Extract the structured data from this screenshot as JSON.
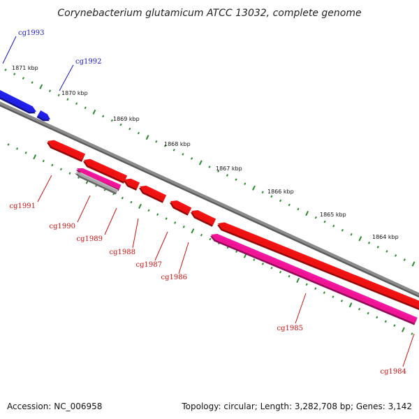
{
  "title": "Corynebacterium glutamicum ATCC 13032, complete genome",
  "accession": "Accession: NC_006958",
  "summary": "Topology: circular; Length: 3,282,708 bp; Genes: 3,142",
  "colors": {
    "forward_gene": "#1f1fe6",
    "reverse_gene": "#ee1111",
    "pseudo_gene": "#ee1493",
    "rna_gene": "#a8a8a8",
    "backbone": "#8a8a8a",
    "tick": "#2a8a2a",
    "label_forward": "#1414c8",
    "label_reverse": "#cc1111"
  },
  "tick_labels": [
    "1871 kbp",
    "1870 kbp",
    "1869 kbp",
    "1868 kbp",
    "1867 kbp",
    "1866 kbp",
    "1865 kbp",
    "1864 kbp"
  ],
  "genes": [
    {
      "label": "cg1993",
      "strand": "forward",
      "type": "cds"
    },
    {
      "label": "cg1992",
      "strand": "forward",
      "type": "cds"
    },
    {
      "label": "cg1991",
      "strand": "reverse",
      "type": "cds"
    },
    {
      "label": "cg1990",
      "strand": "reverse",
      "type": "pseudo"
    },
    {
      "label": "cg1989",
      "strand": "reverse",
      "type": "cds"
    },
    {
      "label": "cg1988",
      "strand": "reverse",
      "type": "cds"
    },
    {
      "label": "cg1987",
      "strand": "reverse",
      "type": "cds"
    },
    {
      "label": "cg1986",
      "strand": "reverse",
      "type": "cds"
    },
    {
      "label": "cg1985",
      "strand": "reverse",
      "type": "cds"
    },
    {
      "label": "cg1984",
      "strand": "reverse",
      "type": "pseudo"
    }
  ]
}
